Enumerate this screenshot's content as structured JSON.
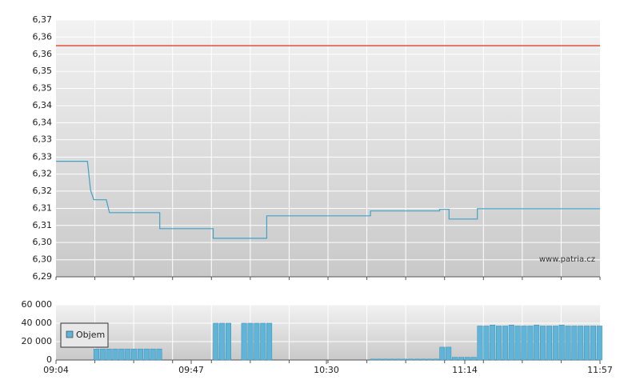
{
  "chart_data": [
    {
      "type": "line",
      "watermark": "www.patria.cz",
      "x": [
        "09:04",
        "09:14",
        "09:15",
        "09:16",
        "09:20",
        "09:21",
        "09:37",
        "09:37",
        "09:54",
        "09:54",
        "10:11",
        "10:11",
        "10:44",
        "10:44",
        "11:06",
        "11:06",
        "11:09",
        "11:09",
        "11:18",
        "11:18",
        "11:57"
      ],
      "series": [
        {
          "color": "#3fa2c8",
          "values": [
            6.326,
            6.326,
            6.317,
            6.314,
            6.314,
            6.31,
            6.31,
            6.305,
            6.305,
            6.302,
            6.302,
            6.309,
            6.309,
            6.3105,
            6.3105,
            6.311,
            6.311,
            6.308,
            6.308,
            6.3112,
            6.3112
          ]
        }
      ],
      "reference_line": {
        "value": 6.362,
        "color": "#e0503c"
      },
      "xlim": [
        "09:04",
        "11:57"
      ],
      "ylim": [
        6.29,
        6.37
      ],
      "yticks": [
        {
          "value": 6.29,
          "label": "6,29"
        },
        {
          "value": 6.2953,
          "label": "6,30"
        },
        {
          "value": 6.3007,
          "label": "6,30"
        },
        {
          "value": 6.306,
          "label": "6,31"
        },
        {
          "value": 6.3113,
          "label": "6,31"
        },
        {
          "value": 6.3167,
          "label": "6,32"
        },
        {
          "value": 6.322,
          "label": "6,32"
        },
        {
          "value": 6.3273,
          "label": "6,33"
        },
        {
          "value": 6.3327,
          "label": "6,33"
        },
        {
          "value": 6.338,
          "label": "6,34"
        },
        {
          "value": 6.3433,
          "label": "6,34"
        },
        {
          "value": 6.3487,
          "label": "6,35"
        },
        {
          "value": 6.354,
          "label": "6,35"
        },
        {
          "value": 6.3593,
          "label": "6,36"
        },
        {
          "value": 6.3647,
          "label": "6,36"
        },
        {
          "value": 6.37,
          "label": "6,37"
        }
      ],
      "grid": true
    },
    {
      "type": "bar",
      "x": [
        "09:16",
        "09:18",
        "09:20",
        "09:22",
        "09:24",
        "09:26",
        "09:28",
        "09:30",
        "09:32",
        "09:34",
        "09:36",
        "09:54",
        "09:56",
        "09:58",
        "10:03",
        "10:05",
        "10:07",
        "10:09",
        "10:11",
        "10:44",
        "10:46",
        "10:48",
        "10:50",
        "10:52",
        "10:54",
        "10:56",
        "10:58",
        "11:00",
        "11:02",
        "11:04",
        "11:06",
        "11:08",
        "11:10",
        "11:12",
        "11:14",
        "11:16",
        "11:18",
        "11:20",
        "11:22",
        "11:24",
        "11:26",
        "11:28",
        "11:30",
        "11:32",
        "11:34",
        "11:36",
        "11:38",
        "11:40",
        "11:42",
        "11:44",
        "11:46",
        "11:48",
        "11:50",
        "11:52",
        "11:54",
        "11:56"
      ],
      "series": [
        {
          "name": "Objem",
          "color": "#5fb4d8",
          "values": [
            12000,
            12000,
            12000,
            12000,
            12000,
            12000,
            12000,
            12000,
            12000,
            12000,
            12000,
            40000,
            40000,
            40000,
            40000,
            40000,
            40000,
            40000,
            40000,
            1000,
            1000,
            1000,
            1000,
            1000,
            1000,
            1000,
            1000,
            1000,
            1000,
            1000,
            14000,
            14000,
            3000,
            3000,
            3000,
            3000,
            37000,
            37000,
            38000,
            37000,
            37000,
            38000,
            37000,
            37000,
            37000,
            38000,
            37000,
            37000,
            37000,
            38000,
            37000,
            37000,
            37000,
            37000,
            37000,
            37000
          ]
        }
      ],
      "xlim": [
        "09:04",
        "11:57"
      ],
      "xticks": [
        "09:04",
        "09:47",
        "10:30",
        "11:14",
        "11:57"
      ],
      "ylim": [
        0,
        60000
      ],
      "yticks": [
        {
          "value": 0,
          "label": "0"
        },
        {
          "value": 20000,
          "label": "20 000"
        },
        {
          "value": 40000,
          "label": "40 000"
        },
        {
          "value": 60000,
          "label": "60 000"
        }
      ],
      "grid": true
    }
  ]
}
